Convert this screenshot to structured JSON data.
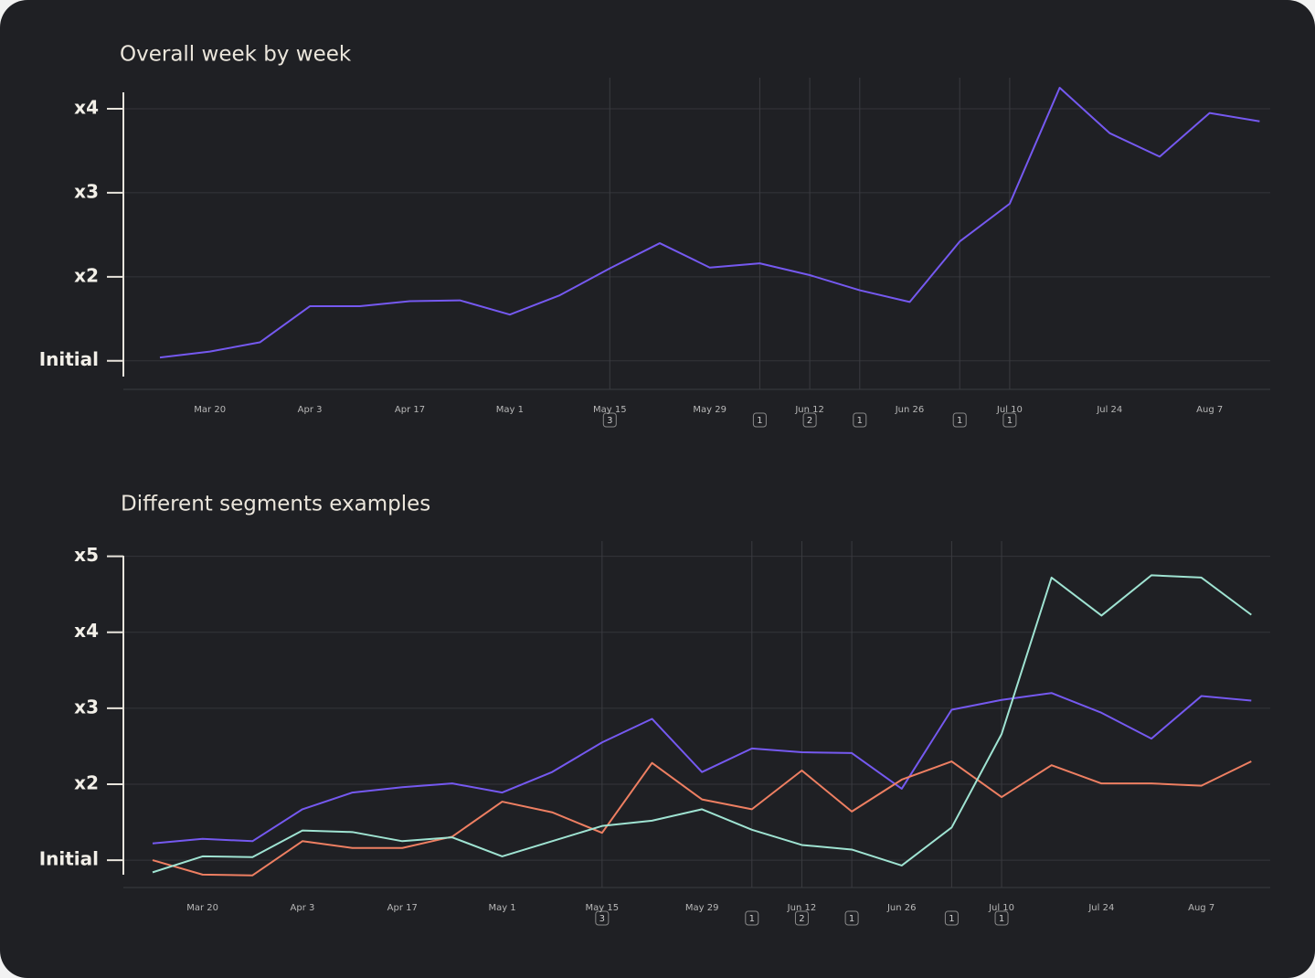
{
  "chart_data": [
    {
      "type": "line",
      "title": "Overall week by week",
      "categories": [
        null,
        "Mar 20",
        null,
        "Apr 3",
        null,
        "Apr 17",
        null,
        "May 1",
        null,
        "May 15",
        null,
        "May 29",
        null,
        "Jun 12",
        null,
        "Jun 26",
        null,
        "Jul 10",
        null,
        "Jul 24",
        null,
        "Aug 7",
        null
      ],
      "series": [
        {
          "color": "#7559f0",
          "values": [
            1.04,
            1.11,
            1.22,
            1.65,
            1.65,
            1.71,
            1.72,
            1.55,
            1.78,
            2.1,
            2.4,
            2.11,
            2.16,
            2.02,
            1.84,
            1.7,
            2.42,
            2.87,
            4.25,
            3.71,
            3.43,
            3.95,
            3.85
          ]
        }
      ],
      "event_counts": [
        null,
        null,
        null,
        null,
        null,
        null,
        null,
        null,
        null,
        3,
        null,
        null,
        1,
        2,
        1,
        null,
        1,
        1,
        null,
        null,
        null,
        null,
        null
      ],
      "ylim": [
        0.66,
        4.37
      ],
      "yticks": [
        {
          "value": 1,
          "label": "Initial"
        },
        {
          "value": 2,
          "label": "x2"
        },
        {
          "value": 3,
          "label": "x3"
        },
        {
          "value": 4,
          "label": "x4"
        }
      ],
      "grid": true
    },
    {
      "type": "line",
      "title": "Different segments examples",
      "categories": [
        null,
        "Mar 20",
        null,
        "Apr 3",
        null,
        "Apr 17",
        null,
        "May 1",
        null,
        "May 15",
        null,
        "May 29",
        null,
        "Jun 12",
        null,
        "Jun 26",
        null,
        "Jul 10",
        null,
        "Jul 24",
        null,
        "Aug 7",
        null
      ],
      "series": [
        {
          "color": "#7559f0",
          "values": [
            1.22,
            1.28,
            1.25,
            1.67,
            1.89,
            1.96,
            2.01,
            1.89,
            2.16,
            2.55,
            2.86,
            2.16,
            2.47,
            2.42,
            2.41,
            1.94,
            2.98,
            3.11,
            3.2,
            2.94,
            2.6,
            3.16,
            3.1
          ]
        },
        {
          "color": "#ee7f62",
          "values": [
            1.0,
            0.81,
            0.8,
            1.25,
            1.16,
            1.16,
            1.31,
            1.77,
            1.63,
            1.36,
            2.28,
            1.8,
            1.67,
            2.18,
            1.64,
            2.06,
            2.3,
            1.83,
            2.25,
            2.01,
            2.01,
            1.98,
            2.3
          ]
        },
        {
          "color": "#9fe3d2",
          "values": [
            0.84,
            1.05,
            1.04,
            1.39,
            1.37,
            1.25,
            1.3,
            1.05,
            1.25,
            1.45,
            1.52,
            1.67,
            1.4,
            1.2,
            1.14,
            0.93,
            1.43,
            2.66,
            4.72,
            4.22,
            4.75,
            4.72,
            4.23
          ]
        }
      ],
      "event_counts": [
        null,
        null,
        null,
        null,
        null,
        null,
        null,
        null,
        null,
        3,
        null,
        null,
        1,
        2,
        1,
        null,
        1,
        1,
        null,
        null,
        null,
        null,
        null
      ],
      "ylim": [
        0.64,
        5.2
      ],
      "yticks": [
        {
          "value": 1,
          "label": "Initial"
        },
        {
          "value": 2,
          "label": "x2"
        },
        {
          "value": 3,
          "label": "x3"
        },
        {
          "value": 4,
          "label": "x4"
        },
        {
          "value": 5,
          "label": "x5"
        }
      ],
      "grid": true
    }
  ]
}
